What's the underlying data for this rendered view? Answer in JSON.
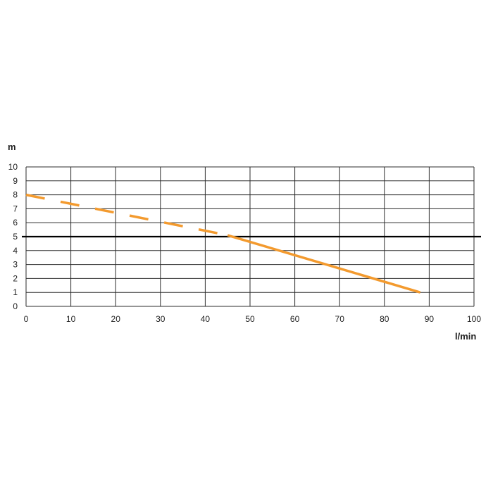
{
  "chart_data": {
    "type": "line",
    "xlabel": "l/min",
    "ylabel": "m",
    "xlim": [
      0,
      100
    ],
    "ylim": [
      0,
      10
    ],
    "x_ticks": [
      0,
      10,
      20,
      30,
      40,
      50,
      60,
      70,
      80,
      90,
      100
    ],
    "y_ticks": [
      0,
      1,
      2,
      3,
      4,
      5,
      6,
      7,
      8,
      9,
      10
    ],
    "grid": true,
    "reference_line": {
      "y": 5,
      "color": "#000000"
    },
    "series": [
      {
        "style": "dashed",
        "color": "#F39A2E",
        "x": [
          0,
          45
        ],
        "y": [
          8,
          5.1
        ]
      },
      {
        "style": "solid",
        "color": "#F39A2E",
        "x": [
          45,
          88
        ],
        "y": [
          5.1,
          1
        ]
      }
    ]
  }
}
